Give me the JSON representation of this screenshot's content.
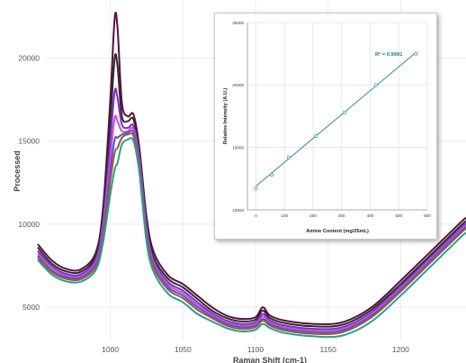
{
  "chart_data": [
    {
      "type": "line",
      "title": "",
      "xlabel": "Raman Shift (cm-1)",
      "ylabel": "Processed",
      "xlim": [
        955,
        1245
      ],
      "ylim": [
        3000,
        23500
      ],
      "x_ticks": [
        "1000",
        "1050",
        "1100",
        "1150",
        "1200"
      ],
      "y_ticks": [
        "5000",
        "10000",
        "15000",
        "20000"
      ],
      "grid": true,
      "x": [
        950,
        960,
        970,
        980,
        990,
        995,
        1000,
        1003,
        1005,
        1008,
        1012,
        1016,
        1020,
        1025,
        1030,
        1040,
        1050,
        1060,
        1070,
        1080,
        1090,
        1100,
        1105,
        1110,
        1120,
        1140,
        1160,
        1180,
        1200,
        1220,
        1240,
        1245
      ],
      "series": [
        {
          "color": "#5a0f3c",
          "values": [
            8800,
            7800,
            7300,
            7300,
            8300,
            11000,
            17500,
            22400,
            21800,
            17300,
            16500,
            16600,
            14600,
            10400,
            8300,
            6900,
            6400,
            5700,
            5000,
            4500,
            4300,
            4400,
            5000,
            4500,
            4200,
            4000,
            4100,
            5000,
            6600,
            8300,
            10000,
            10400
          ]
        },
        {
          "color": "#2d2d2d",
          "values": [
            8600,
            7600,
            7150,
            7150,
            8100,
            10600,
            16200,
            20000,
            19500,
            16500,
            16200,
            16300,
            14300,
            10100,
            8000,
            6700,
            6200,
            5500,
            4800,
            4350,
            4150,
            4250,
            4800,
            4350,
            4050,
            3850,
            3950,
            4850,
            6400,
            8100,
            9800,
            10200
          ]
        },
        {
          "color": "#7c2bd6",
          "values": [
            8400,
            7450,
            7000,
            7000,
            7900,
            10100,
            15000,
            18000,
            17600,
            16000,
            15800,
            15900,
            14000,
            9800,
            7800,
            6500,
            6000,
            5300,
            4650,
            4200,
            4000,
            4100,
            4600,
            4200,
            3900,
            3700,
            3800,
            4700,
            6250,
            7950,
            9650,
            10050
          ]
        },
        {
          "color": "#d04fc4",
          "values": [
            8250,
            7350,
            6900,
            6900,
            7750,
            9800,
            14000,
            16400,
            16200,
            15600,
            15600,
            15700,
            13800,
            9600,
            7650,
            6350,
            5850,
            5150,
            4550,
            4100,
            3900,
            4000,
            4450,
            4100,
            3800,
            3600,
            3700,
            4600,
            6150,
            7850,
            9550,
            9950
          ]
        },
        {
          "color": "#4a5bd6",
          "values": [
            8100,
            7200,
            6800,
            6800,
            7600,
            9500,
            13200,
            15100,
            15200,
            15400,
            15500,
            15500,
            13600,
            9400,
            7500,
            6200,
            5700,
            5000,
            4450,
            4000,
            3800,
            3900,
            4300,
            4000,
            3700,
            3500,
            3600,
            4500,
            6050,
            7750,
            9450,
            9850
          ]
        },
        {
          "color": "#a35a33",
          "values": [
            8000,
            7100,
            6700,
            6700,
            7450,
            9200,
            12600,
            14300,
            14600,
            15200,
            15400,
            15300,
            13400,
            9200,
            7350,
            6050,
            5550,
            4850,
            4350,
            3900,
            3700,
            3800,
            4200,
            3900,
            3600,
            3400,
            3500,
            4400,
            5950,
            7650,
            9350,
            9750
          ]
        },
        {
          "color": "#2a9c96",
          "values": [
            7850,
            6950,
            6550,
            6550,
            7250,
            8900,
            11800,
            13300,
            13700,
            14800,
            15100,
            15000,
            13100,
            8900,
            7100,
            5800,
            5300,
            4600,
            4150,
            3750,
            3550,
            3650,
            4000,
            3750,
            3450,
            3250,
            3300,
            4150,
            5700,
            7400,
            9100,
            9500
          ]
        }
      ]
    },
    {
      "type": "scatter",
      "title": "",
      "xlabel": "Amine Content (mg/25mL)",
      "ylabel": "Relative Intensity (A.U.)",
      "xlim": [
        -30,
        600
      ],
      "ylim": [
        10000,
        25000
      ],
      "x_ticks": [
        "0",
        "100",
        "200",
        "300",
        "400",
        "500",
        "600"
      ],
      "y_ticks": [
        "10000",
        "15000",
        "20000",
        "25000"
      ],
      "grid": true,
      "annotation": "R² = 0.9991",
      "marker_color": "#3aaa9e",
      "line_color": "#2f8a8a",
      "fit": {
        "x0": 0,
        "y0": 11900,
        "x1": 560,
        "y1": 22600
      },
      "points": [
        {
          "x": 0,
          "y": 11700
        },
        {
          "x": 55,
          "y": 12800
        },
        {
          "x": 115,
          "y": 14200
        },
        {
          "x": 210,
          "y": 15900
        },
        {
          "x": 310,
          "y": 17800
        },
        {
          "x": 420,
          "y": 20000
        },
        {
          "x": 560,
          "y": 22500
        }
      ]
    }
  ]
}
